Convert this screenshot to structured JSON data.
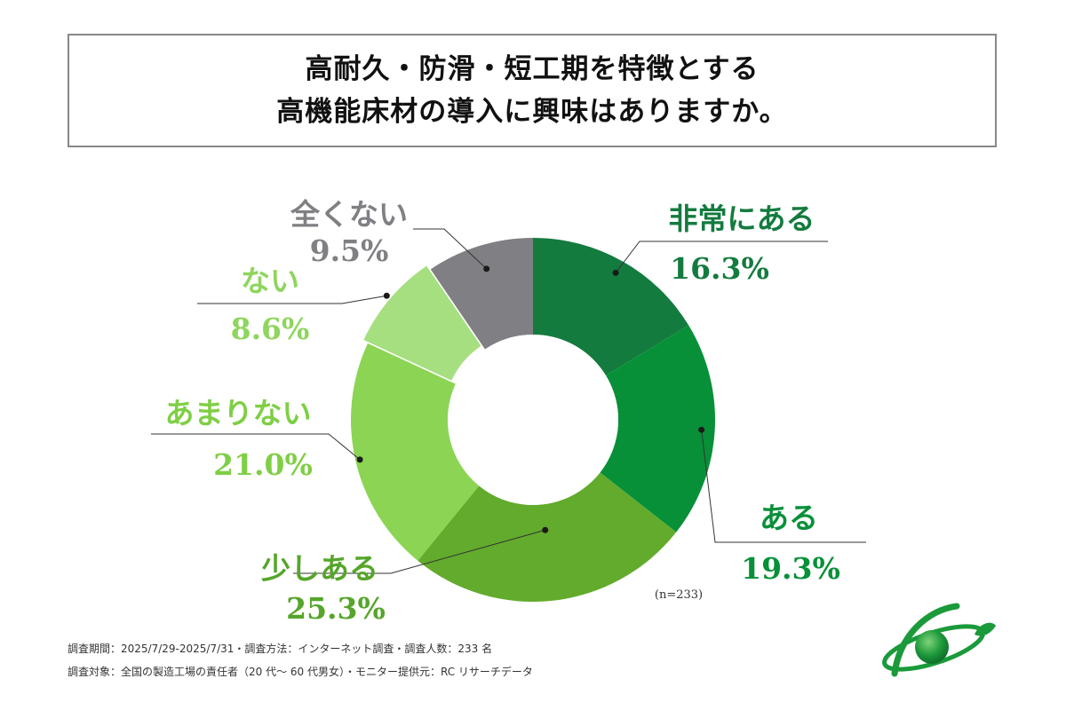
{
  "title": {
    "line1": "高耐久・防滑・短工期を特徴とする",
    "line2": "高機能床材の導入に興味はありますか。"
  },
  "chart_data": {
    "type": "pie",
    "donut": true,
    "n_label": "(n=233)",
    "slices": [
      {
        "label": "非常にある",
        "value": 16.3,
        "display": "16.3%",
        "color": "#137b3e"
      },
      {
        "label": "ある",
        "value": 19.3,
        "display": "19.3%",
        "color": "#079038"
      },
      {
        "label": "少しある",
        "value": 25.3,
        "display": "25.3%",
        "color": "#62ab2c"
      },
      {
        "label": "あまりない",
        "value": 21.0,
        "display": "21.0%",
        "color": "#8cd453"
      },
      {
        "label": "ない",
        "value": 8.6,
        "display": "8.6%",
        "color": "#a6df7f"
      },
      {
        "label": "全くない",
        "value": 9.5,
        "display": "9.5%",
        "color": "#807f83"
      }
    ]
  },
  "footer": {
    "line1": "調査期間：2025/7/29-2025/7/31・調査方法：インターネット調査・調査人数：233 名",
    "line2": "調査対象：全国の製造工場の責任者（20 代～ 60 代男女）・モニター提供元：RC リサーチデータ"
  }
}
